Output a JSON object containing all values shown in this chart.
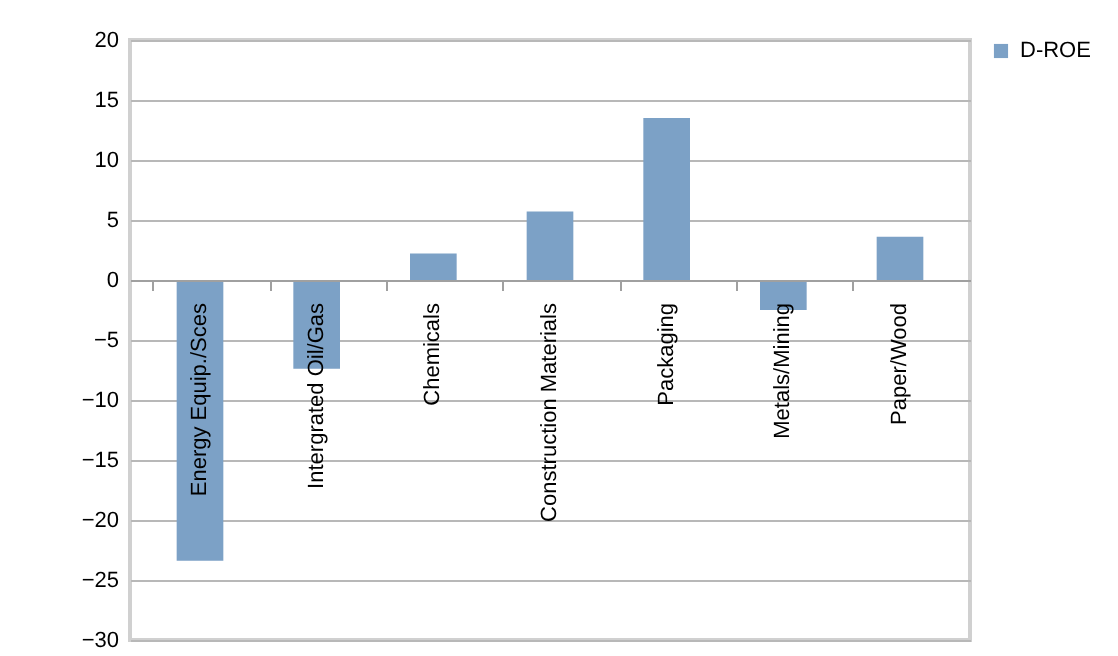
{
  "chart_data": {
    "type": "bar",
    "categories": [
      "Energy Equip./Sces",
      "Intergrated Oil/Gas",
      "Chemicals",
      "Construction Materials",
      "Packaging",
      "Metals/Mining",
      "Paper/Wood"
    ],
    "series": [
      {
        "name": "D-ROE",
        "color": "#7ca1c6",
        "values": [
          -23.4,
          -7.4,
          2.2,
          5.7,
          13.5,
          -2.5,
          3.6
        ]
      }
    ],
    "ylim": [
      -30,
      20
    ],
    "yticks": [
      -30,
      -25,
      -20,
      -15,
      -10,
      -5,
      0,
      5,
      10,
      15,
      20
    ],
    "grid": "y",
    "legend": "right"
  }
}
